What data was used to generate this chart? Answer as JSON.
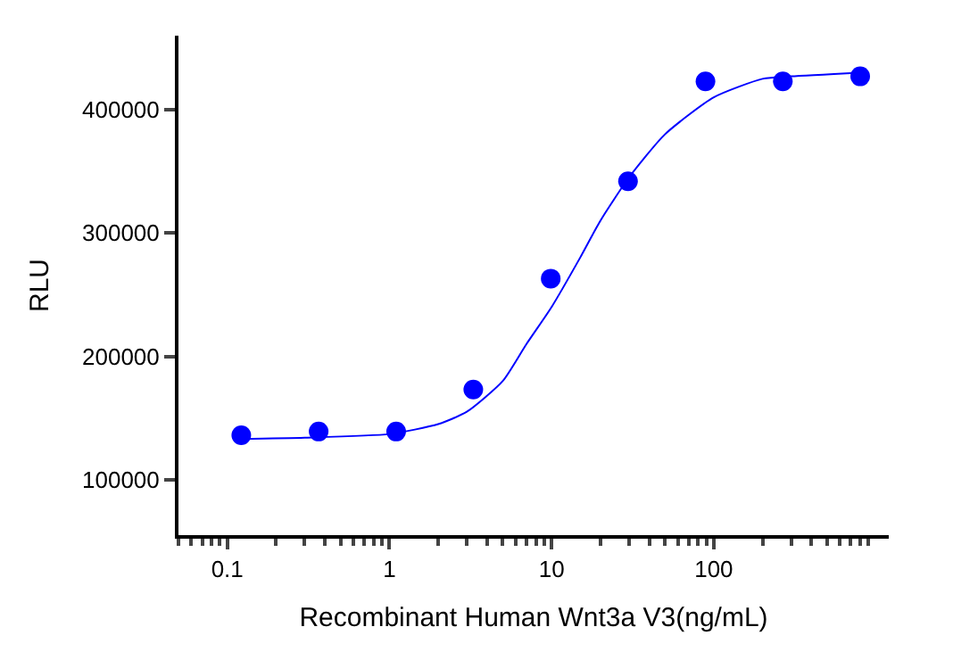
{
  "chart_data": {
    "type": "scatter",
    "xlabel": "Recombinant Human Wnt3a V3(ng/mL)",
    "ylabel": "RLU",
    "log": "x",
    "xlim": [
      0.05,
      1200
    ],
    "xticks": [
      {
        "value": 0.1,
        "label": "0.1"
      },
      1,
      10,
      100
    ],
    "ylim": [
      55000,
      460000
    ],
    "yticks": [
      100000,
      200000,
      300000,
      400000
    ],
    "series": [
      {
        "marker": "circle",
        "color": "#0000ff",
        "x": [
          0.122,
          0.366,
          1.1,
          3.29,
          9.88,
          29.6,
          88.9,
          266.7,
          800
        ],
        "values": [
          136000,
          139000,
          139000,
          173000,
          263000,
          342000,
          423000,
          423000,
          427000
        ]
      },
      {
        "type": "line",
        "line_style": "solid",
        "color": "#0000ff",
        "x": [
          0.12,
          0.3,
          1,
          2,
          3,
          5,
          7,
          10,
          15,
          20,
          30,
          50,
          100,
          200,
          300,
          800
        ],
        "values": [
          133000,
          134000,
          137000,
          145000,
          155000,
          180000,
          210000,
          240000,
          280000,
          310000,
          345000,
          380000,
          410000,
          425000,
          427000,
          430000
        ]
      }
    ]
  }
}
